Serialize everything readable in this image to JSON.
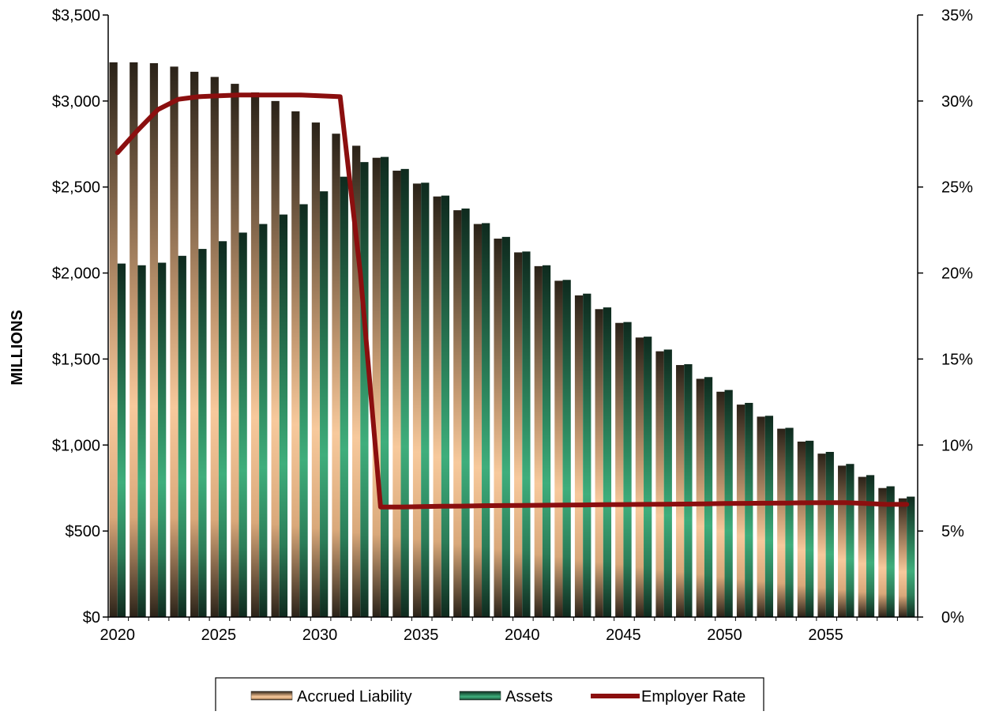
{
  "chart_data": {
    "type": "bar",
    "title": "",
    "xlabel": "",
    "ylabel": "MILLIONS",
    "y2label": "",
    "ylim": [
      0,
      3500
    ],
    "y2lim": [
      0,
      35
    ],
    "yticks": [
      "$0",
      "$500",
      "$1,000",
      "$1,500",
      "$2,000",
      "$2,500",
      "$3,000",
      "$3,500"
    ],
    "y2ticks": [
      "0%",
      "5%",
      "10%",
      "15%",
      "20%",
      "25%",
      "30%",
      "35%"
    ],
    "xticks": [
      "2020",
      "2025",
      "2030",
      "2035",
      "2040",
      "2045",
      "2050",
      "2055"
    ],
    "categories": [
      2020,
      2021,
      2022,
      2023,
      2024,
      2025,
      2026,
      2027,
      2028,
      2029,
      2030,
      2031,
      2032,
      2033,
      2034,
      2035,
      2036,
      2037,
      2038,
      2039,
      2040,
      2041,
      2042,
      2043,
      2044,
      2045,
      2046,
      2047,
      2048,
      2049,
      2050,
      2051,
      2052,
      2053,
      2054,
      2055,
      2056,
      2057,
      2058,
      2059
    ],
    "grid": false,
    "legend_position": "bottom",
    "series": [
      {
        "name": "Accrued Liability",
        "kind": "bar",
        "axis": "left",
        "color": "#f5c89a",
        "values": [
          3225,
          3225,
          3220,
          3200,
          3170,
          3140,
          3100,
          3050,
          3000,
          2940,
          2875,
          2810,
          2740,
          2670,
          2595,
          2520,
          2445,
          2365,
          2285,
          2200,
          2120,
          2040,
          1955,
          1870,
          1790,
          1710,
          1625,
          1545,
          1465,
          1385,
          1310,
          1235,
          1165,
          1095,
          1020,
          950,
          880,
          815,
          750,
          690
        ]
      },
      {
        "name": "Assets",
        "kind": "bar",
        "axis": "left",
        "color": "#3a9c6e",
        "values": [
          2055,
          2045,
          2060,
          2100,
          2140,
          2185,
          2235,
          2285,
          2340,
          2400,
          2475,
          2560,
          2645,
          2675,
          2605,
          2525,
          2450,
          2375,
          2290,
          2210,
          2125,
          2045,
          1960,
          1880,
          1800,
          1715,
          1630,
          1555,
          1470,
          1395,
          1320,
          1245,
          1170,
          1100,
          1025,
          960,
          890,
          825,
          760,
          700
        ]
      },
      {
        "name": "Employer Rate",
        "kind": "line",
        "axis": "right",
        "color": "#8b0f0f",
        "values": [
          27.0,
          28.3,
          29.5,
          30.1,
          30.25,
          30.3,
          30.35,
          30.35,
          30.35,
          30.35,
          30.3,
          30.25,
          20.0,
          6.4,
          6.4,
          6.42,
          6.44,
          6.45,
          6.47,
          6.48,
          6.49,
          6.5,
          6.51,
          6.52,
          6.53,
          6.54,
          6.55,
          6.56,
          6.57,
          6.58,
          6.6,
          6.61,
          6.62,
          6.63,
          6.64,
          6.65,
          6.65,
          6.6,
          6.55,
          6.55
        ]
      }
    ]
  }
}
